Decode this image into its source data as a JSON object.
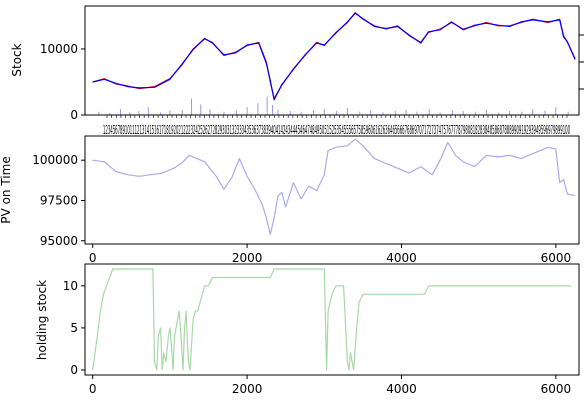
{
  "chart_data": [
    {
      "type": "line",
      "ylabel": "Stock",
      "xlim": [
        -100,
        6300
      ],
      "ylim": [
        0,
        16500
      ],
      "yticks": [
        0,
        10000
      ],
      "x_tick_label_text": "123456789101112131415161718192021222324252627282930313233343536373839404142434445464748495051525354555657585960616263646566676869707172737475767778798081828384858687888990919293949596979899100",
      "series": [
        {
          "color": "#ff0000",
          "x": [
            0,
            150,
            300,
            450,
            600,
            800,
            1000,
            1150,
            1300,
            1450,
            1550,
            1700,
            1850,
            2000,
            2150,
            2250,
            2300,
            2350,
            2450,
            2600,
            2750,
            2900,
            3000,
            3150,
            3300,
            3400,
            3500,
            3650,
            3800,
            3950,
            4100,
            4250,
            4350,
            4500,
            4650,
            4800,
            4950,
            5100,
            5250,
            5400,
            5550,
            5700,
            5900,
            6050,
            6100,
            6150,
            6250
          ],
          "y": [
            5000,
            5500,
            4700,
            4400,
            4000,
            4300,
            5500,
            7500,
            10000,
            11500,
            11000,
            9000,
            9500,
            10500,
            11000,
            8000,
            5000,
            2500,
            4500,
            7000,
            9000,
            11000,
            10500,
            12500,
            14000,
            15500,
            14500,
            13500,
            13000,
            13500,
            12000,
            11000,
            12500,
            13000,
            14000,
            13000,
            13500,
            14000,
            13500,
            13500,
            14000,
            14500,
            14000,
            14500,
            12000,
            11000,
            8500
          ]
        },
        {
          "color": "#0000ff",
          "x": [
            0,
            150,
            300,
            450,
            600,
            800,
            1000,
            1150,
            1300,
            1450,
            1550,
            1700,
            1850,
            2000,
            2150,
            2250,
            2300,
            2350,
            2450,
            2600,
            2750,
            2900,
            3000,
            3150,
            3300,
            3400,
            3500,
            3650,
            3800,
            3950,
            4100,
            4250,
            4350,
            4500,
            4650,
            4800,
            4950,
            5100,
            5250,
            5400,
            5550,
            5700,
            5900,
            6050,
            6100,
            6150,
            6250
          ],
          "y": [
            5000,
            5400,
            4800,
            4300,
            4100,
            4200,
            5400,
            7600,
            9900,
            11600,
            10900,
            9100,
            9400,
            10600,
            10900,
            7800,
            5200,
            2300,
            4600,
            6900,
            9100,
            10900,
            10600,
            12400,
            14100,
            15400,
            14600,
            13400,
            13100,
            13400,
            12100,
            10900,
            12600,
            12900,
            14100,
            12900,
            13600,
            13900,
            13600,
            13400,
            14100,
            14400,
            14100,
            14400,
            11800,
            11100,
            8400
          ]
        }
      ],
      "volume": {
        "color": "#9999ee",
        "x": [
          80,
          220,
          360,
          480,
          600,
          720,
          880,
          1000,
          1160,
          1280,
          1400,
          1520,
          1700,
          1860,
          2000,
          2140,
          2260,
          2330,
          2400,
          2560,
          2700,
          2860,
          3000,
          3160,
          3300,
          3460,
          3600,
          3760,
          3920,
          4060,
          4200,
          4360,
          4500,
          4660,
          4800,
          4960,
          5100,
          5260,
          5400,
          5560,
          5700,
          5860,
          6000,
          6160
        ],
        "v": [
          500,
          300,
          900,
          400,
          600,
          1200,
          400,
          700,
          800,
          2500,
          1600,
          900,
          500,
          700,
          1200,
          1800,
          2800,
          1500,
          800,
          600,
          500,
          700,
          900,
          600,
          1100,
          500,
          700,
          400,
          600,
          800,
          500,
          900,
          400,
          700,
          600,
          500,
          800,
          400,
          600,
          500,
          900,
          700,
          1200,
          500
        ]
      }
    },
    {
      "type": "line",
      "ylabel": "PV on Time",
      "xlim": [
        -100,
        6300
      ],
      "ylim": [
        94800,
        101500
      ],
      "yticks": [
        95000,
        97500,
        100000
      ],
      "xticks": [
        0,
        2000,
        4000,
        6000
      ],
      "series": [
        {
          "color": "#aaaaee",
          "x": [
            0,
            150,
            300,
            450,
            600,
            750,
            900,
            1050,
            1150,
            1250,
            1350,
            1450,
            1600,
            1700,
            1800,
            1900,
            2000,
            2100,
            2200,
            2250,
            2300,
            2350,
            2400,
            2450,
            2500,
            2600,
            2700,
            2800,
            2900,
            3000,
            3050,
            3150,
            3300,
            3400,
            3500,
            3650,
            3800,
            3950,
            4100,
            4250,
            4400,
            4500,
            4600,
            4700,
            4800,
            4950,
            5100,
            5250,
            5400,
            5550,
            5700,
            5900,
            6000,
            6050,
            6100,
            6150,
            6250
          ],
          "y": [
            100000,
            99900,
            99300,
            99100,
            99000,
            99100,
            99200,
            99500,
            99800,
            100300,
            100100,
            99900,
            99000,
            98200,
            98900,
            100100,
            99000,
            98200,
            97200,
            96400,
            95400,
            96400,
            97800,
            98000,
            97100,
            98600,
            97600,
            98400,
            98100,
            99100,
            100600,
            100800,
            100900,
            101300,
            100900,
            100100,
            99800,
            99500,
            99200,
            99600,
            99100,
            100000,
            101100,
            100300,
            99900,
            99600,
            100300,
            100200,
            100300,
            100100,
            100400,
            100800,
            100700,
            98600,
            98800,
            97900,
            97800
          ]
        }
      ]
    },
    {
      "type": "line",
      "ylabel": "holding stock",
      "xlim": [
        -100,
        6300
      ],
      "ylim": [
        -0.6,
        12.6
      ],
      "yticks": [
        0,
        5,
        10
      ],
      "xticks": [
        0,
        2000,
        4000,
        6000
      ],
      "series": [
        {
          "color": "#a8d8a8",
          "x": [
            0,
            30,
            60,
            100,
            140,
            180,
            220,
            260,
            330,
            600,
            780,
            800,
            830,
            850,
            880,
            900,
            920,
            950,
            980,
            1000,
            1020,
            1040,
            1060,
            1080,
            1100,
            1120,
            1150,
            1170,
            1190,
            1210,
            1240,
            1260,
            1300,
            1330,
            1360,
            1390,
            1420,
            1450,
            1500,
            1550,
            1600,
            2300,
            2350,
            3000,
            3030,
            3050,
            3100,
            3150,
            3250,
            3300,
            3320,
            3340,
            3380,
            3420,
            3450,
            3500,
            4300,
            4350,
            6200
          ],
          "y": [
            0,
            2,
            4,
            7,
            9,
            10,
            11,
            12,
            12,
            12,
            12,
            1,
            0,
            4,
            5,
            0,
            2,
            1,
            4,
            5,
            3,
            0,
            4,
            5,
            6,
            7,
            3,
            0,
            5,
            7,
            1,
            0,
            6,
            7,
            7,
            8,
            9,
            10,
            10,
            11,
            11,
            11,
            12,
            12,
            0,
            7,
            9,
            10,
            10,
            1,
            0,
            2,
            0,
            5,
            8,
            9,
            9,
            10,
            10
          ]
        }
      ]
    }
  ]
}
